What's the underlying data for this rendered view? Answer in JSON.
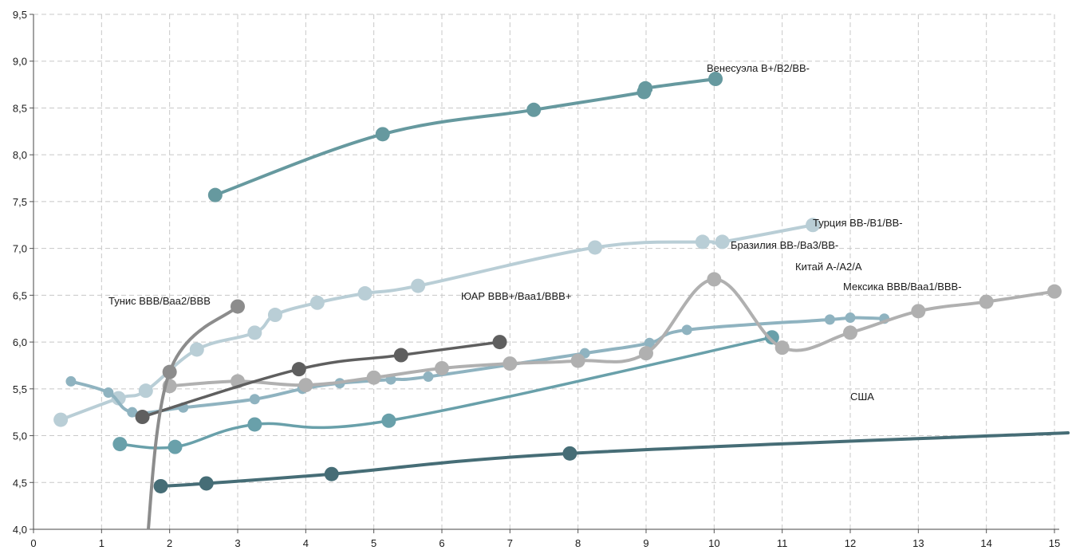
{
  "chart_data": {
    "type": "line",
    "xlim": [
      0,
      15
    ],
    "ylim": [
      4.0,
      9.5
    ],
    "x_ticks": [
      "0",
      "1",
      "2",
      "3",
      "4",
      "5",
      "6",
      "7",
      "8",
      "9",
      "10",
      "11",
      "12",
      "13",
      "14",
      "15"
    ],
    "y_ticks": [
      "4,0",
      "4,5",
      "5,0",
      "5,5",
      "6,0",
      "6,5",
      "7,0",
      "7,5",
      "8,0",
      "8,5",
      "9,0",
      "9,5"
    ],
    "grid": true,
    "series": [
      {
        "name": "Венесуэла B+/B2/BB-",
        "color": "#66999f",
        "values": [
          [
            2.67,
            7.57
          ],
          [
            5.13,
            8.22
          ],
          [
            7.35,
            8.48
          ],
          [
            8.97,
            8.67
          ],
          [
            8.99,
            8.71
          ],
          [
            10.02,
            8.81
          ]
        ]
      },
      {
        "name": "Турция BB-/B1/BB-",
        "color": "#b9ced6",
        "values": [
          [
            0.4,
            5.17
          ],
          [
            1.25,
            5.4
          ],
          [
            1.65,
            5.48
          ],
          [
            2.4,
            5.92
          ],
          [
            3.25,
            6.1
          ],
          [
            3.55,
            6.29
          ],
          [
            4.17,
            6.42
          ],
          [
            4.87,
            6.52
          ],
          [
            5.65,
            6.6
          ],
          [
            8.25,
            7.01
          ],
          [
            9.83,
            7.07
          ],
          [
            10.12,
            7.07
          ],
          [
            11.45,
            7.25
          ]
        ]
      },
      {
        "name": "Бразилия BB-/Ba3/BB-",
        "color": "#8fb3c0",
        "values": [
          [
            0.55,
            5.58
          ],
          [
            1.1,
            5.46
          ],
          [
            1.45,
            5.25
          ],
          [
            2.2,
            5.3
          ],
          [
            3.25,
            5.39
          ],
          [
            3.95,
            5.5
          ],
          [
            4.5,
            5.56
          ],
          [
            5.25,
            5.6
          ],
          [
            5.8,
            5.63
          ],
          [
            8.1,
            5.88
          ],
          [
            9.05,
            5.99
          ],
          [
            9.6,
            6.13
          ],
          [
            11.7,
            6.24
          ],
          [
            12.0,
            6.26
          ],
          [
            12.5,
            6.25
          ]
        ]
      },
      {
        "name": "Китай A-/A2/A",
        "color": "#69a0aa",
        "values": [
          [
            1.27,
            4.91
          ],
          [
            2.08,
            4.88
          ],
          [
            3.25,
            5.12
          ],
          [
            5.22,
            5.16
          ],
          [
            10.85,
            6.05
          ]
        ]
      },
      {
        "name": "Мексика BBB/Baa1/BBB-",
        "color": "#b0b0b0",
        "values": [
          [
            2.0,
            5.53
          ],
          [
            3.0,
            5.58
          ],
          [
            4.0,
            5.54
          ],
          [
            5.0,
            5.62
          ],
          [
            6.0,
            5.72
          ],
          [
            7.0,
            5.77
          ],
          [
            8.0,
            5.8
          ],
          [
            9.0,
            5.88
          ],
          [
            10.0,
            6.67
          ],
          [
            11.0,
            5.94
          ],
          [
            12.0,
            6.1
          ],
          [
            13.0,
            6.33
          ],
          [
            14.0,
            6.43
          ],
          [
            15.0,
            6.54
          ]
        ]
      },
      {
        "name": "ЮАР BBB+/Baa1/BBB+",
        "color": "#5f5f5f",
        "values": [
          [
            1.6,
            5.2
          ],
          [
            3.9,
            5.71
          ],
          [
            5.4,
            5.86
          ],
          [
            6.85,
            6.0
          ]
        ]
      },
      {
        "name": "Тунис BBB/Baa2/BBB",
        "color": "#8c8c8c",
        "values": [
          [
            1.65,
            3.7
          ],
          [
            2.0,
            5.68
          ],
          [
            3.0,
            6.38
          ]
        ]
      },
      {
        "name": "США",
        "color": "#466d76",
        "values": [
          [
            1.87,
            4.46
          ],
          [
            2.54,
            4.49
          ],
          [
            4.38,
            4.59
          ],
          [
            7.88,
            4.81
          ],
          [
            15.2,
            5.03
          ]
        ]
      }
    ]
  }
}
